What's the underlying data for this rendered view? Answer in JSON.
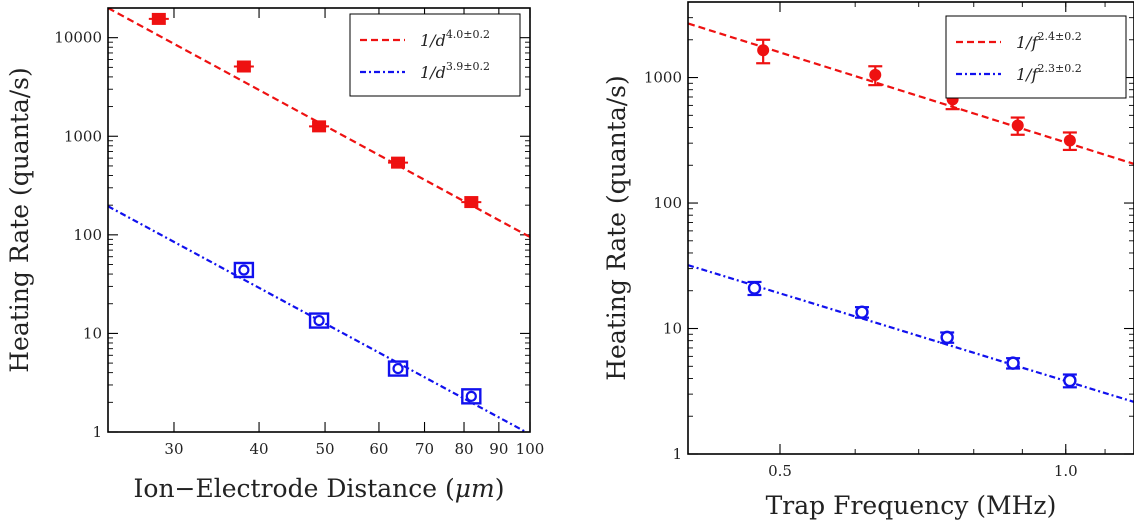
{
  "chart_data": [
    {
      "type": "scatter",
      "xlabel": "Ion−Electrode Distance (",
      "xlabel_unit": "μm",
      "xlabel_close": ")",
      "ylabel": "Heating Rate (quanta/s)",
      "x_scale": "log",
      "y_scale": "log",
      "xlim": [
        24,
        100
      ],
      "ylim": [
        1,
        20000
      ],
      "x_ticks": [
        30,
        40,
        50,
        60,
        70,
        80,
        90,
        100
      ],
      "x_tick_labels": [
        "30",
        "40",
        "50",
        "60",
        "70",
        "80",
        "90",
        "100"
      ],
      "y_ticks": [
        1,
        10,
        100,
        1000,
        10000
      ],
      "y_tick_labels": [
        "1",
        "10",
        "100",
        "1000",
        "10000"
      ],
      "grid": false,
      "legend_position": "top-right",
      "series": [
        {
          "legend": "1/d",
          "legend_exp": "4.0±0.2",
          "style": "dashed",
          "marker": "filled-square",
          "color": "#ee1111",
          "x": [
            28.5,
            38,
            49,
            64,
            82
          ],
          "y": [
            15500,
            5100,
            1260,
            540,
            215
          ],
          "fit_x": [
            24,
            100
          ],
          "fit_y": [
            20000,
            95
          ]
        },
        {
          "legend": "1/d",
          "legend_exp": "3.9±0.2",
          "style": "dash-dot",
          "marker": "open-square",
          "color": "#1111ee",
          "x": [
            38,
            49,
            64,
            82
          ],
          "y": [
            44,
            13.5,
            4.4,
            2.3
          ],
          "fit_x": [
            24,
            100
          ],
          "fit_y": [
            195,
            0.95
          ]
        }
      ]
    },
    {
      "type": "scatter",
      "xlabel": "Trap Frequency (MHz)",
      "ylabel": "Heating Rate (quanta/s)",
      "x_scale": "log",
      "y_scale": "log",
      "xlim": [
        0.4,
        1.18
      ],
      "ylim": [
        1,
        4000
      ],
      "x_ticks": [
        0.5,
        1.0
      ],
      "x_tick_labels": [
        "0.5",
        "1.0"
      ],
      "y_ticks": [
        1,
        10,
        100,
        1000
      ],
      "y_tick_labels": [
        "1",
        "10",
        "100",
        "1000"
      ],
      "grid": false,
      "legend_position": "top-right",
      "series": [
        {
          "legend": "1/f",
          "legend_exp": "2.4±0.2",
          "style": "dashed",
          "marker": "filled-circle",
          "color": "#ee1111",
          "x": [
            0.48,
            0.63,
            0.76,
            0.89,
            1.01
          ],
          "y": [
            1650,
            1050,
            670,
            415,
            315
          ],
          "err": [
            350,
            180,
            110,
            65,
            50
          ],
          "fit_x": [
            0.4,
            1.18
          ],
          "fit_y": [
            2700,
            205
          ]
        },
        {
          "legend": "1/f",
          "legend_exp": "2.3±0.2",
          "style": "dash-dot",
          "marker": "open-circle",
          "color": "#1111ee",
          "x": [
            0.47,
            0.61,
            0.75,
            0.88,
            1.01
          ],
          "y": [
            21,
            13.5,
            8.5,
            5.3,
            3.85
          ],
          "err": [
            2.5,
            1.3,
            0.8,
            0.5,
            0.45
          ],
          "fit_x": [
            0.4,
            1.18
          ],
          "fit_y": [
            32,
            2.6
          ]
        }
      ]
    }
  ]
}
